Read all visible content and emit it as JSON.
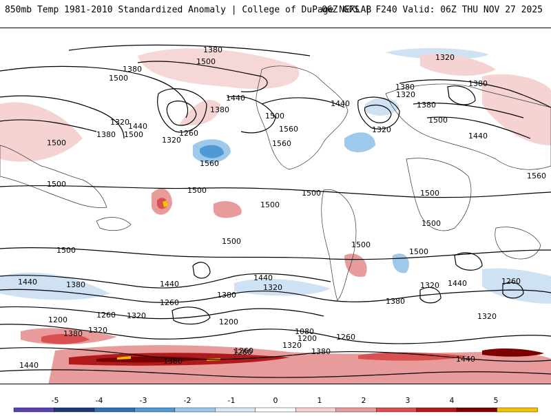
{
  "header": {
    "title": "850mb Temp 1981-2010 Standardized Anomaly | College of DuPage NEXLAB",
    "run_info": "06Z GFS | F240 Valid: 06Z THU NOV 27 2025"
  },
  "map": {
    "contour_labels": [
      "1380",
      "1500",
      "1380",
      "1500",
      "1440",
      "1380",
      "1260",
      "1320",
      "1440",
      "1380",
      "1500",
      "1500",
      "1320",
      "1560",
      "1560",
      "1440",
      "1500",
      "1560",
      "1320",
      "1380",
      "1320",
      "1380",
      "1380",
      "1500",
      "1440",
      "1320",
      "1500",
      "1560",
      "1500",
      "1500",
      "1500",
      "1500",
      "1500",
      "1500",
      "1500",
      "1500",
      "1500",
      "1440",
      "1380",
      "1440",
      "1320",
      "1260",
      "1440",
      "1380",
      "1260",
      "1200",
      "1320",
      "1260",
      "1200",
      "1320",
      "1260",
      "1080",
      "1200",
      "1260",
      "1320",
      "1380",
      "1440",
      "1380",
      "1320",
      "1440",
      "1380",
      "1260",
      "1380",
      "1440",
      "1320"
    ]
  },
  "legend": {
    "ticks": [
      "-5",
      "-4",
      "-3",
      "-2",
      "-1",
      "0",
      "1",
      "2",
      "3",
      "4",
      "5"
    ],
    "colors": [
      "#5a3fb5",
      "#1f3a7a",
      "#2f6fb3",
      "#4f9ad6",
      "#9ec9ea",
      "#d6e8f6",
      "#ffffff",
      "#f5d3d3",
      "#e89b9b",
      "#d95050",
      "#b11a1a",
      "#7d0000",
      "#f2c200"
    ]
  }
}
